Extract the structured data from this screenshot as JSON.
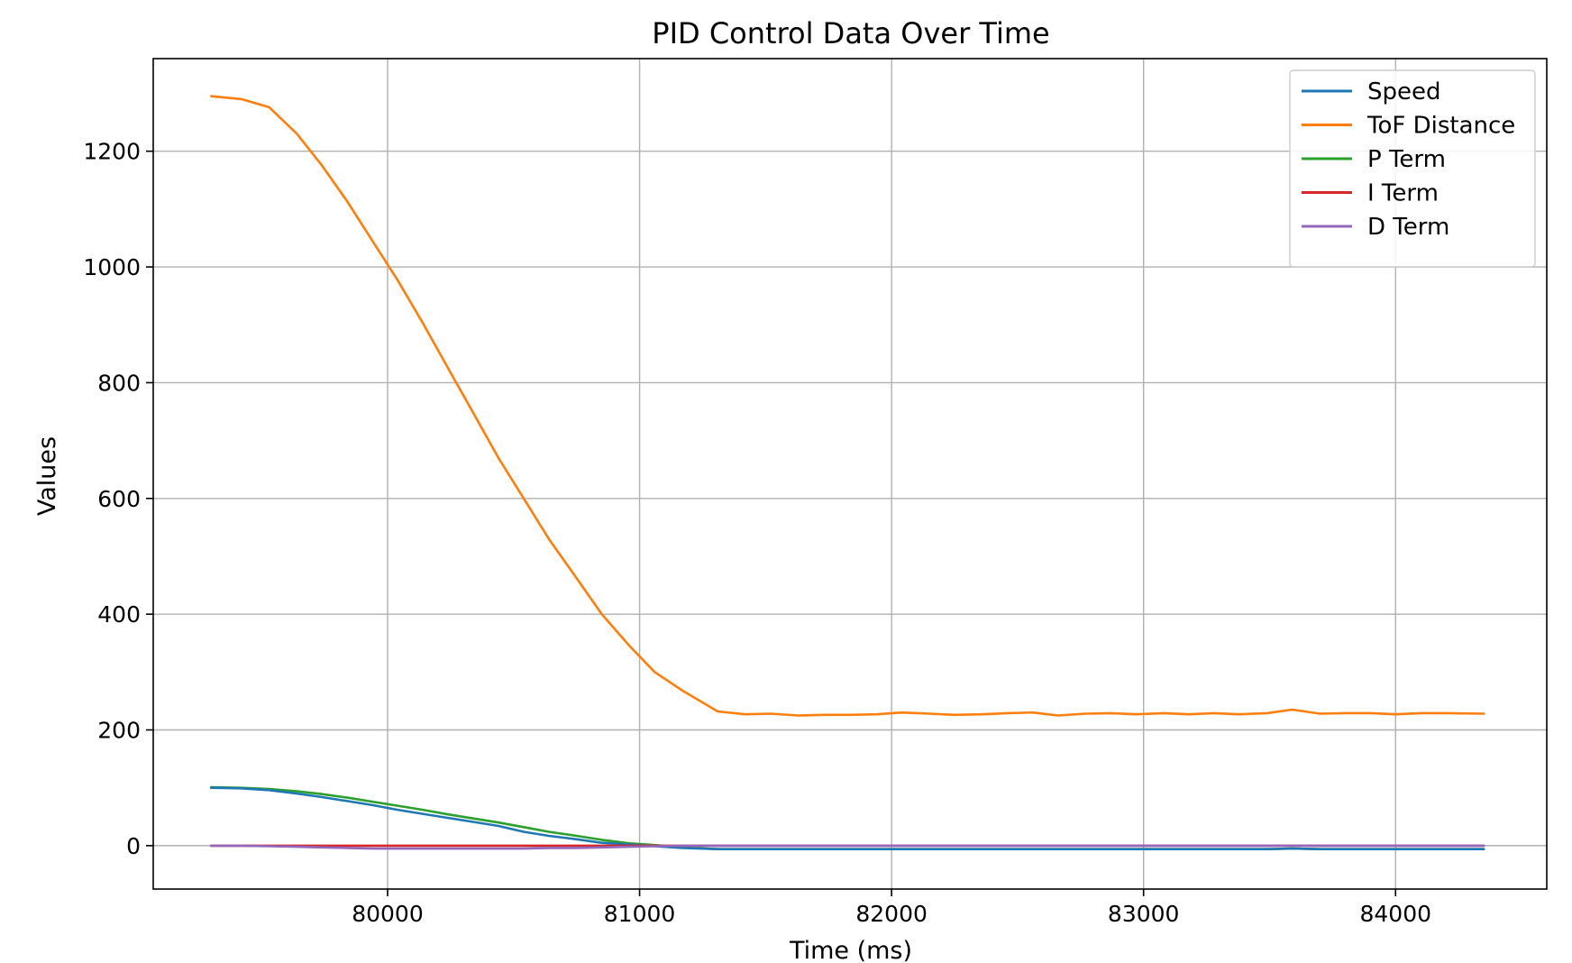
{
  "chart_data": {
    "type": "line",
    "title": "PID Control Data Over Time",
    "xlabel": "Time (ms)",
    "ylabel": "Values",
    "xlim": [
      79070,
      84600
    ],
    "ylim": [
      -75,
      1360
    ],
    "xticks": [
      80000,
      81000,
      82000,
      83000,
      84000
    ],
    "yticks": [
      0,
      200,
      400,
      600,
      800,
      1000,
      1200
    ],
    "grid": true,
    "legend_position": "top-right",
    "x": [
      79300,
      79420,
      79530,
      79640,
      79740,
      79840,
      79940,
      80040,
      80140,
      80240,
      80340,
      80440,
      80540,
      80640,
      80750,
      80850,
      80960,
      81060,
      81170,
      81310,
      81420,
      81520,
      81630,
      81730,
      81830,
      81940,
      82040,
      82150,
      82250,
      82360,
      82460,
      82560,
      82660,
      82770,
      82870,
      82970,
      83080,
      83180,
      83280,
      83380,
      83490,
      83590,
      83700,
      83800,
      83900,
      84000,
      84100,
      84200,
      84350
    ],
    "series": [
      {
        "name": "Speed",
        "color": "#1f77b4",
        "values": [
          100,
          99,
          96,
          90,
          84,
          77,
          70,
          62,
          55,
          48,
          41,
          34,
          24,
          17,
          11,
          5,
          2,
          -1,
          -4,
          -6,
          -6,
          -6,
          -6,
          -6,
          -6,
          -6,
          -6,
          -6,
          -6,
          -6,
          -6,
          -6,
          -6,
          -6,
          -6,
          -6,
          -6,
          -6,
          -6,
          -6,
          -6,
          -5,
          -6,
          -6,
          -6,
          -6,
          -6,
          -6,
          -6
        ]
      },
      {
        "name": "ToF Distance",
        "color": "#ff7f0e",
        "values": [
          1295,
          1290,
          1276,
          1230,
          1175,
          1113,
          1045,
          977,
          903,
          825,
          748,
          670,
          600,
          530,
          462,
          400,
          345,
          300,
          268,
          232,
          227,
          228,
          225,
          226,
          226,
          227,
          230,
          228,
          226,
          227,
          229,
          230,
          225,
          228,
          229,
          227,
          229,
          227,
          229,
          227,
          229,
          235,
          228,
          229,
          229,
          227,
          229,
          229,
          228
        ]
      },
      {
        "name": "P Term",
        "color": "#2ca02c",
        "values": [
          101,
          100,
          98,
          94,
          89,
          83,
          76,
          69,
          62,
          54,
          47,
          40,
          32,
          24,
          17,
          10,
          4,
          1,
          -3,
          -6,
          -6,
          -6,
          -6,
          -6,
          -6,
          -6,
          -6,
          -6,
          -6,
          -6,
          -6,
          -6,
          -6,
          -6,
          -6,
          -6,
          -6,
          -6,
          -6,
          -6,
          -6,
          -5,
          -6,
          -6,
          -6,
          -6,
          -6,
          -6,
          -6
        ]
      },
      {
        "name": "I Term",
        "color": "#d62728",
        "values": [
          0,
          0,
          0,
          0,
          0,
          0,
          0,
          0,
          0,
          0,
          0,
          0,
          0,
          0,
          0,
          0,
          0,
          0,
          0,
          0,
          0,
          0,
          0,
          0,
          0,
          0,
          0,
          0,
          0,
          0,
          0,
          0,
          0,
          0,
          0,
          0,
          0,
          0,
          0,
          0,
          0,
          0,
          0,
          0,
          0,
          0,
          0,
          0,
          0
        ]
      },
      {
        "name": "D Term",
        "color": "#9467bd",
        "values": [
          0,
          0,
          -1,
          -2,
          -3,
          -4,
          -5,
          -5,
          -5,
          -5,
          -5,
          -5,
          -5,
          -4,
          -4,
          -3,
          -2,
          -1,
          0,
          0,
          0,
          0,
          0,
          0,
          0,
          0,
          0,
          0,
          0,
          0,
          0,
          0,
          0,
          0,
          0,
          0,
          0,
          0,
          0,
          0,
          0,
          0,
          0,
          0,
          0,
          0,
          0,
          0,
          0
        ]
      }
    ]
  }
}
